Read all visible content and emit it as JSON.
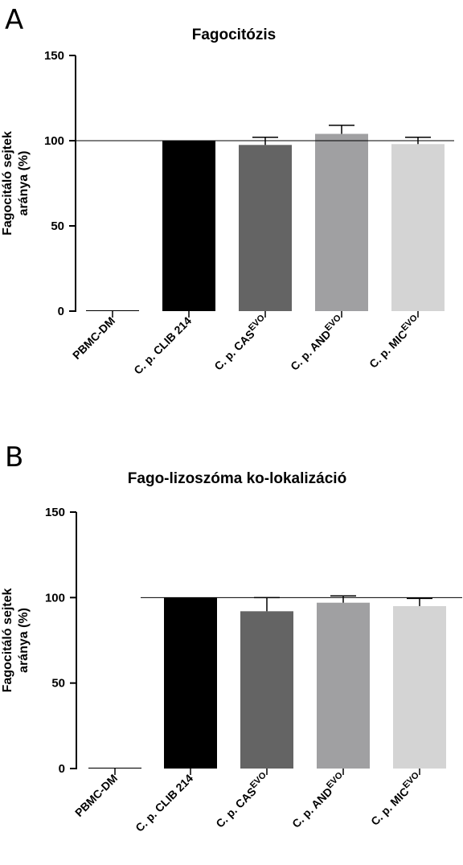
{
  "chart_data": [
    {
      "panel_label": "A",
      "type": "bar",
      "title": "Fagocitózis",
      "ylabel": [
        "Fagocitáló sejtek",
        "aránya (%)"
      ],
      "ylim": [
        0,
        150
      ],
      "yticks": [
        "0",
        "50",
        "100",
        "150"
      ],
      "reference_line": 100,
      "categories": [
        {
          "label": "PBMC-DM",
          "sup": ""
        },
        {
          "label": "C. p. CLIB 214",
          "sup": ""
        },
        {
          "label": "C. p. CAS",
          "sup": "EVO"
        },
        {
          "label": "C. p. AND",
          "sup": "EVO"
        },
        {
          "label": "C. p. MIC",
          "sup": "EVO"
        }
      ],
      "values": [
        0.5,
        100,
        97.5,
        104,
        98
      ],
      "errors": [
        0,
        0,
        4.5,
        5,
        4
      ],
      "colors": [
        "#000000",
        "#000000",
        "#646464",
        "#a0a0a2",
        "#d4d4d4"
      ]
    },
    {
      "panel_label": "B",
      "type": "bar",
      "title": "Fago-lizoszóma ko-lokalizáció",
      "ylabel": [
        "Fagocitáló sejtek",
        "aránya (%)"
      ],
      "ylim": [
        0,
        150
      ],
      "yticks": [
        "0",
        "50",
        "100",
        "150"
      ],
      "reference_line": 100,
      "categories": [
        {
          "label": "PBMC-DM",
          "sup": ""
        },
        {
          "label": "C. p. CLIB 214",
          "sup": ""
        },
        {
          "label": "C. p. CAS",
          "sup": "EVO"
        },
        {
          "label": "C. p. AND",
          "sup": "EVO"
        },
        {
          "label": "C. p. MIC",
          "sup": "EVO"
        }
      ],
      "values": [
        0.5,
        100,
        92,
        97,
        95
      ],
      "errors": [
        0,
        0,
        8,
        4,
        4.5
      ],
      "colors": [
        "#000000",
        "#000000",
        "#646464",
        "#a0a0a2",
        "#d4d4d4"
      ]
    }
  ]
}
